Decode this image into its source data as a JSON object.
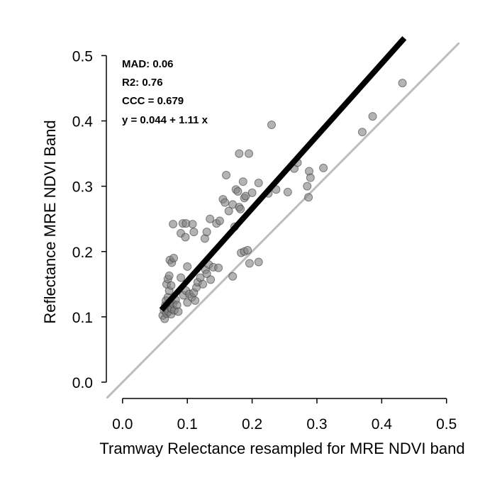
{
  "chart_data": {
    "type": "scatter",
    "xlabel": "Tramway Relectance resampled for MRE NDVI band",
    "ylabel": "Reflectance MRE NDVI Band",
    "xlim": [
      -0.025,
      0.52
    ],
    "ylim": [
      -0.025,
      0.52
    ],
    "xticks": [
      0.0,
      0.1,
      0.2,
      0.3,
      0.4,
      0.5
    ],
    "yticks": [
      0.0,
      0.1,
      0.2,
      0.3,
      0.4,
      0.5
    ],
    "xtick_labels": [
      "0.0",
      "0.1",
      "0.2",
      "0.3",
      "0.4",
      "0.5"
    ],
    "ytick_labels": [
      "0.0",
      "0.1",
      "0.2",
      "0.3",
      "0.4",
      "0.5"
    ],
    "grid": false,
    "annotations": {
      "mad": "MAD: 0.06",
      "r2": "R2: 0.76",
      "ccc": "CCC =  0.679",
      "equation": "y =  0.044 + 1.11 x"
    },
    "points": [
      [
        0.062,
        0.102
      ],
      [
        0.064,
        0.11
      ],
      [
        0.065,
        0.097
      ],
      [
        0.066,
        0.118
      ],
      [
        0.067,
        0.125
      ],
      [
        0.068,
        0.105
      ],
      [
        0.069,
        0.113
      ],
      [
        0.07,
        0.13
      ],
      [
        0.071,
        0.108
      ],
      [
        0.072,
        0.14
      ],
      [
        0.073,
        0.122
      ],
      [
        0.074,
        0.115
      ],
      [
        0.075,
        0.104
      ],
      [
        0.076,
        0.112
      ],
      [
        0.078,
        0.12
      ],
      [
        0.08,
        0.11
      ],
      [
        0.082,
        0.126
      ],
      [
        0.084,
        0.118
      ],
      [
        0.086,
        0.108
      ],
      [
        0.068,
        0.15
      ],
      [
        0.07,
        0.158
      ],
      [
        0.072,
        0.163
      ],
      [
        0.075,
        0.148
      ],
      [
        0.073,
        0.187
      ],
      [
        0.076,
        0.183
      ],
      [
        0.079,
        0.19
      ],
      [
        0.078,
        0.242
      ],
      [
        0.09,
        0.228
      ],
      [
        0.093,
        0.243
      ],
      [
        0.098,
        0.243
      ],
      [
        0.097,
        0.222
      ],
      [
        0.11,
        0.23
      ],
      [
        0.108,
        0.242
      ],
      [
        0.1,
        0.177
      ],
      [
        0.09,
        0.16
      ],
      [
        0.094,
        0.133
      ],
      [
        0.098,
        0.14
      ],
      [
        0.1,
        0.122
      ],
      [
        0.103,
        0.135
      ],
      [
        0.107,
        0.13
      ],
      [
        0.11,
        0.137
      ],
      [
        0.112,
        0.125
      ],
      [
        0.114,
        0.145
      ],
      [
        0.116,
        0.153
      ],
      [
        0.12,
        0.16
      ],
      [
        0.124,
        0.15
      ],
      [
        0.128,
        0.172
      ],
      [
        0.13,
        0.166
      ],
      [
        0.133,
        0.18
      ],
      [
        0.136,
        0.157
      ],
      [
        0.14,
        0.176
      ],
      [
        0.148,
        0.175
      ],
      [
        0.127,
        0.22
      ],
      [
        0.13,
        0.23
      ],
      [
        0.135,
        0.25
      ],
      [
        0.145,
        0.243
      ],
      [
        0.15,
        0.247
      ],
      [
        0.155,
        0.28
      ],
      [
        0.158,
        0.275
      ],
      [
        0.16,
        0.317
      ],
      [
        0.164,
        0.262
      ],
      [
        0.17,
        0.272
      ],
      [
        0.173,
        0.238
      ],
      [
        0.175,
        0.295
      ],
      [
        0.178,
        0.292
      ],
      [
        0.18,
        0.268
      ],
      [
        0.182,
        0.265
      ],
      [
        0.18,
        0.35
      ],
      [
        0.186,
        0.307
      ],
      [
        0.188,
        0.282
      ],
      [
        0.19,
        0.285
      ],
      [
        0.195,
        0.35
      ],
      [
        0.2,
        0.29
      ],
      [
        0.21,
        0.305
      ],
      [
        0.17,
        0.162
      ],
      [
        0.183,
        0.198
      ],
      [
        0.188,
        0.2
      ],
      [
        0.193,
        0.202
      ],
      [
        0.196,
        0.182
      ],
      [
        0.21,
        0.184
      ],
      [
        0.225,
        0.289
      ],
      [
        0.23,
        0.394
      ],
      [
        0.237,
        0.295
      ],
      [
        0.255,
        0.291
      ],
      [
        0.265,
        0.327
      ],
      [
        0.27,
        0.336
      ],
      [
        0.285,
        0.3
      ],
      [
        0.287,
        0.283
      ],
      [
        0.288,
        0.323
      ],
      [
        0.29,
        0.313
      ],
      [
        0.31,
        0.328
      ],
      [
        0.37,
        0.383
      ],
      [
        0.386,
        0.407
      ],
      [
        0.432,
        0.458
      ]
    ],
    "fit": {
      "intercept": 0.044,
      "slope": 1.11,
      "x_range": [
        0.06,
        0.435
      ]
    },
    "reference_line": {
      "intercept": 0,
      "slope": 1
    },
    "colors": {
      "points_fill": "#808080",
      "points_stroke": "#404040",
      "fit_line": "#000000",
      "reference_line": "#bdbdbd"
    }
  }
}
